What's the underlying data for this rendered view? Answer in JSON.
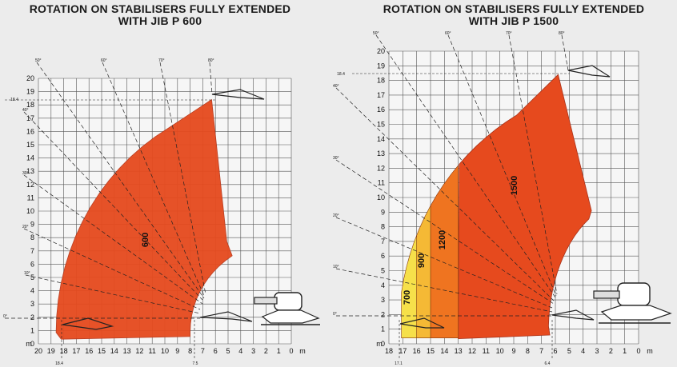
{
  "chart_data": [
    {
      "type": "area",
      "title_line1": "ROTATION ON STABILISERS FULLY EXTENDED",
      "title_line2": "WITH JIB P 600",
      "xlabel": "m",
      "ylabel": "m",
      "x_ticks": [
        "20",
        "19",
        "18",
        "17",
        "16",
        "15",
        "14",
        "13",
        "12",
        "11",
        "10",
        "9",
        "8",
        "7",
        "6",
        "5",
        "4",
        "3",
        "2",
        "1",
        "0"
      ],
      "y_ticks": [
        "0",
        "1",
        "2",
        "3",
        "4",
        "5",
        "6",
        "7",
        "8",
        "9",
        "10",
        "11",
        "12",
        "13",
        "14",
        "15",
        "16",
        "17",
        "18",
        "19",
        "20"
      ],
      "xlim": [
        20,
        0
      ],
      "ylim": [
        0,
        20
      ],
      "grid": true,
      "angle_labels": [
        "0°",
        "10°",
        "20°",
        "30°",
        "40°",
        "50°",
        "60°",
        "70°",
        "80°"
      ],
      "special_labels": {
        "max_height": "18.4",
        "max_reach": "18.4",
        "min_reach": "7.5"
      },
      "zones": [
        {
          "name": "600",
          "color": "#e64a1e",
          "color_label": "red-orange"
        }
      ],
      "envelope": {
        "max_height_m": 18.4,
        "max_reach_m": 18.4,
        "min_reach_m": 7.5
      }
    },
    {
      "type": "area",
      "title_line1": "ROTATION ON STABILISERS FULLY EXTENDED",
      "title_line2": "WITH JIB P 1500",
      "xlabel": "m",
      "ylabel": "m",
      "x_ticks": [
        "18",
        "17",
        "16",
        "15",
        "14",
        "13",
        "12",
        "11",
        "10",
        "9",
        "8",
        "7",
        "6",
        "5",
        "4",
        "3",
        "2",
        "1",
        "0"
      ],
      "y_ticks": [
        "0",
        "1",
        "2",
        "3",
        "4",
        "5",
        "6",
        "7",
        "8",
        "9",
        "10",
        "11",
        "12",
        "13",
        "14",
        "15",
        "16",
        "17",
        "18",
        "19",
        "20"
      ],
      "xlim": [
        18,
        0
      ],
      "ylim": [
        0,
        20
      ],
      "grid": true,
      "angle_labels": [
        "0°",
        "10°",
        "20°",
        "30°",
        "40°",
        "50°",
        "60°",
        "70°",
        "80°"
      ],
      "special_labels": {
        "max_height": "18.4",
        "max_reach": "17.1",
        "min_reach": "6.4"
      },
      "zones": [
        {
          "name": "700",
          "color": "#f6e04a",
          "color_label": "yellow"
        },
        {
          "name": "900",
          "color": "#f5b935",
          "color_label": "amber"
        },
        {
          "name": "1200",
          "color": "#ef7420",
          "color_label": "orange"
        },
        {
          "name": "1500",
          "color": "#e64a1e",
          "color_label": "red-orange"
        }
      ],
      "envelope": {
        "max_height_m": 18.4,
        "max_reach_m": 17.1,
        "min_reach_m": 6.4
      }
    }
  ]
}
